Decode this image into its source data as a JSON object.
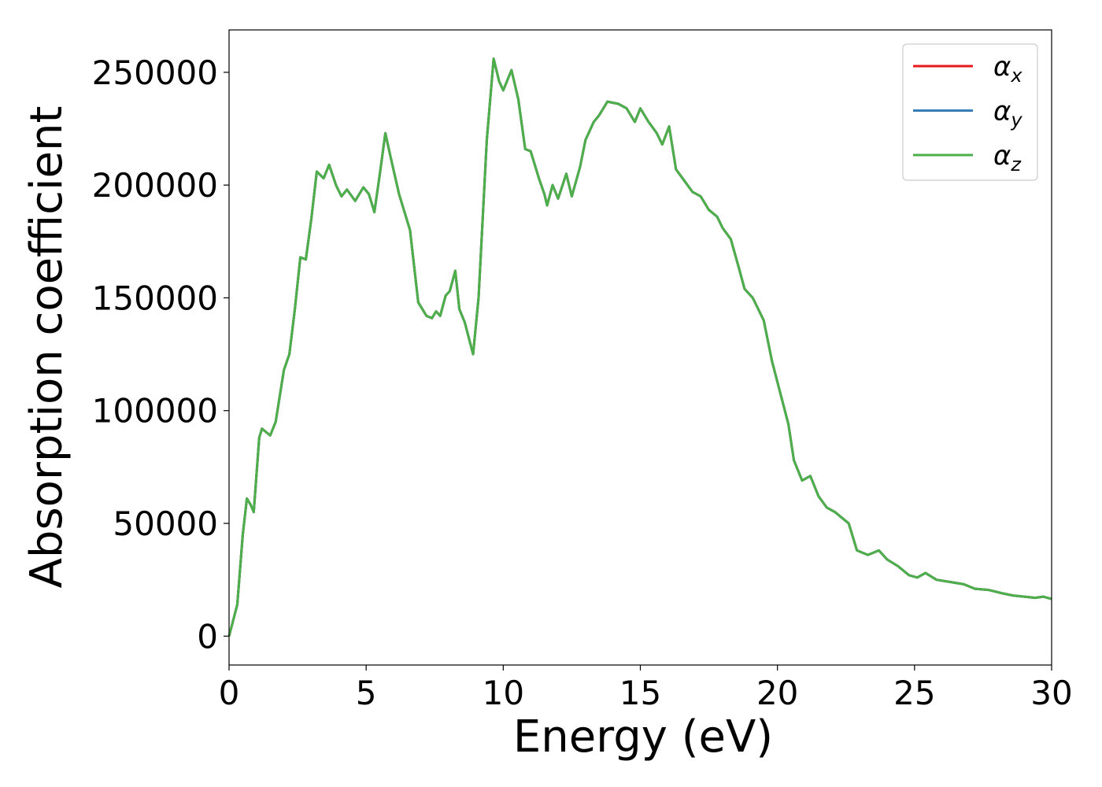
{
  "chart_data": {
    "type": "line",
    "xlabel": "Energy (eV)",
    "ylabel": "Absorption coefficient",
    "x": [
      0,
      0.3,
      0.5,
      0.65,
      0.8,
      0.9,
      1.1,
      1.2,
      1.5,
      1.7,
      2.0,
      2.2,
      2.4,
      2.6,
      2.8,
      3.0,
      3.2,
      3.45,
      3.65,
      3.9,
      4.1,
      4.3,
      4.6,
      4.9,
      5.1,
      5.3,
      5.5,
      5.7,
      5.9,
      6.2,
      6.6,
      6.9,
      7.2,
      7.4,
      7.55,
      7.7,
      7.9,
      8.05,
      8.25,
      8.4,
      8.6,
      8.9,
      9.1,
      9.4,
      9.65,
      9.85,
      10.0,
      10.3,
      10.55,
      10.8,
      11.0,
      11.3,
      11.5,
      11.6,
      11.8,
      12.0,
      12.3,
      12.5,
      12.8,
      13.0,
      13.3,
      13.5,
      13.8,
      14.2,
      14.5,
      14.8,
      15.0,
      15.3,
      15.6,
      15.8,
      16.05,
      16.3,
      16.6,
      16.9,
      17.2,
      17.5,
      17.8,
      18.0,
      18.3,
      18.6,
      18.8,
      19.1,
      19.3,
      19.5,
      19.8,
      20.1,
      20.4,
      20.6,
      20.9,
      21.2,
      21.5,
      21.8,
      22.1,
      22.4,
      22.6,
      22.9,
      23.3,
      23.7,
      24.0,
      24.4,
      24.8,
      25.1,
      25.4,
      25.8,
      26.3,
      26.8,
      27.2,
      27.7,
      28.2,
      28.6,
      29.0,
      29.4,
      29.7,
      30.0
    ],
    "series": [
      {
        "name": "αx",
        "color": "#e41a1c",
        "values": [
          0,
          14000,
          45000,
          61000,
          58000,
          55000,
          88000,
          92000,
          89000,
          95000,
          118000,
          125000,
          145000,
          168000,
          167000,
          185000,
          206000,
          203000,
          209000,
          200000,
          195000,
          198000,
          193000,
          199000,
          196000,
          188000,
          205000,
          223000,
          212000,
          196000,
          180000,
          148000,
          142000,
          141000,
          144000,
          142000,
          151000,
          153000,
          162000,
          145000,
          139000,
          125000,
          150000,
          220000,
          256000,
          246000,
          242000,
          251000,
          238000,
          216000,
          215000,
          203000,
          196000,
          191000,
          200000,
          194000,
          205000,
          195000,
          208000,
          220000,
          228000,
          231000,
          237000,
          236000,
          234000,
          228000,
          234000,
          228000,
          223000,
          218000,
          226000,
          207000,
          202000,
          197000,
          195000,
          189000,
          186000,
          181000,
          176000,
          163000,
          154000,
          150000,
          145000,
          140000,
          122000,
          108000,
          94000,
          78000,
          69000,
          71000,
          62000,
          57000,
          55000,
          52000,
          50000,
          38000,
          36000,
          38000,
          34000,
          31000,
          27000,
          26000,
          28000,
          25000,
          24000,
          23000,
          21000,
          20500,
          19000,
          18000,
          17500,
          17000,
          17500,
          16500
        ]
      },
      {
        "name": "αy",
        "color": "#377eb8",
        "values": [
          0,
          14000,
          45000,
          61000,
          58000,
          55000,
          88000,
          92000,
          89000,
          95000,
          118000,
          125000,
          145000,
          168000,
          167000,
          185000,
          206000,
          203000,
          209000,
          200000,
          195000,
          198000,
          193000,
          199000,
          196000,
          188000,
          205000,
          223000,
          212000,
          196000,
          180000,
          148000,
          142000,
          141000,
          144000,
          142000,
          151000,
          153000,
          162000,
          145000,
          139000,
          125000,
          150000,
          220000,
          256000,
          246000,
          242000,
          251000,
          238000,
          216000,
          215000,
          203000,
          196000,
          191000,
          200000,
          194000,
          205000,
          195000,
          208000,
          220000,
          228000,
          231000,
          237000,
          236000,
          234000,
          228000,
          234000,
          228000,
          223000,
          218000,
          226000,
          207000,
          202000,
          197000,
          195000,
          189000,
          186000,
          181000,
          176000,
          163000,
          154000,
          150000,
          145000,
          140000,
          122000,
          108000,
          94000,
          78000,
          69000,
          71000,
          62000,
          57000,
          55000,
          52000,
          50000,
          38000,
          36000,
          38000,
          34000,
          31000,
          27000,
          26000,
          28000,
          25000,
          24000,
          23000,
          21000,
          20500,
          19000,
          18000,
          17500,
          17000,
          17500,
          16500
        ]
      },
      {
        "name": "αz",
        "color": "#4daf4a",
        "values": [
          0,
          14000,
          45000,
          61000,
          58000,
          55000,
          88000,
          92000,
          89000,
          95000,
          118000,
          125000,
          145000,
          168000,
          167000,
          185000,
          206000,
          203000,
          209000,
          200000,
          195000,
          198000,
          193000,
          199000,
          196000,
          188000,
          205000,
          223000,
          212000,
          196000,
          180000,
          148000,
          142000,
          141000,
          144000,
          142000,
          151000,
          153000,
          162000,
          145000,
          139000,
          125000,
          150000,
          220000,
          256000,
          246000,
          242000,
          251000,
          238000,
          216000,
          215000,
          203000,
          196000,
          191000,
          200000,
          194000,
          205000,
          195000,
          208000,
          220000,
          228000,
          231000,
          237000,
          236000,
          234000,
          228000,
          234000,
          228000,
          223000,
          218000,
          226000,
          207000,
          202000,
          197000,
          195000,
          189000,
          186000,
          181000,
          176000,
          163000,
          154000,
          150000,
          145000,
          140000,
          122000,
          108000,
          94000,
          78000,
          69000,
          71000,
          62000,
          57000,
          55000,
          52000,
          50000,
          38000,
          36000,
          38000,
          34000,
          31000,
          27000,
          26000,
          28000,
          25000,
          24000,
          23000,
          21000,
          20500,
          19000,
          18000,
          17500,
          17000,
          17500,
          16500
        ]
      }
    ],
    "xlim": [
      0,
      30
    ],
    "xticks": [
      0,
      5,
      10,
      15,
      20,
      25,
      30
    ],
    "ylim": [
      -12800,
      268800
    ],
    "yticks": [
      0,
      50000,
      100000,
      150000,
      200000,
      250000
    ],
    "grid": false,
    "legend": "upper right"
  }
}
